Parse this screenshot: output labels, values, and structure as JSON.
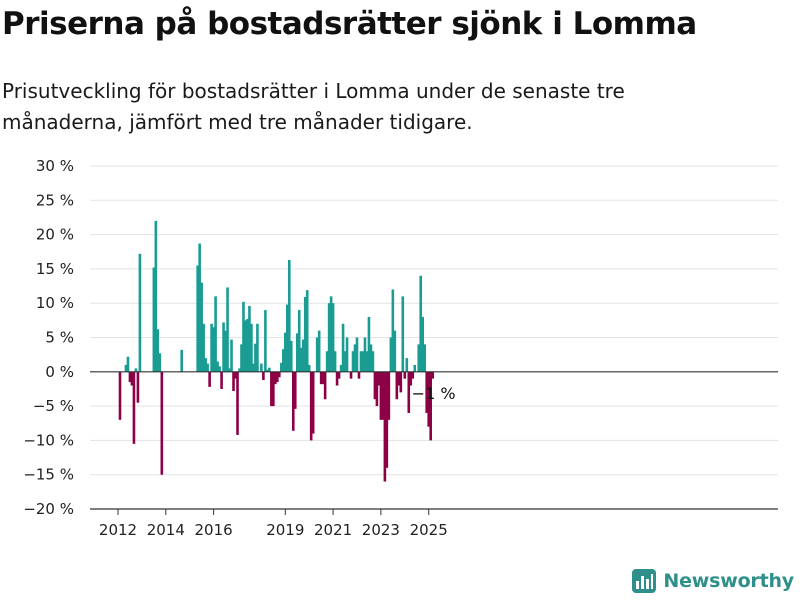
{
  "title": "Priserna på bostadsrätter sjönk i Lomma",
  "subtitle": "Prisutveckling för bostadsrätter i Lomma under de senaste tre månaderna, jämfört med tre månader tidigare.",
  "brand": "Newsworthy",
  "colors": {
    "positive": "#1a9c93",
    "negative": "#8c0046",
    "grid": "#e3e3e3",
    "axis": "#333333",
    "brand": "#2f8f8a"
  },
  "chart_data": {
    "type": "bar",
    "xlabel": "",
    "ylabel": "",
    "ylim": [
      -20,
      30
    ],
    "y_ticks": [
      30,
      25,
      20,
      15,
      10,
      5,
      0,
      -5,
      -10,
      -15,
      -20
    ],
    "y_tick_labels": [
      "30 %",
      "25 %",
      "20 %",
      "15 %",
      "10 %",
      "5 %",
      "0 %",
      "−5 %",
      "−10 %",
      "−15 %",
      "−20 %"
    ],
    "x_ticks": [
      {
        "label": "2012",
        "date": "2012-01"
      },
      {
        "label": "2014",
        "date": "2014-01"
      },
      {
        "label": "2016",
        "date": "2016-01"
      },
      {
        "label": "2019",
        "date": "2019-01"
      },
      {
        "label": "2021",
        "date": "2021-01"
      },
      {
        "label": "2023",
        "date": "2023-01"
      },
      {
        "label": "2025",
        "date": "2025-01"
      }
    ],
    "grid": true,
    "annotation": {
      "text": "−1 %",
      "date": "2025-03"
    },
    "series": [
      {
        "values": [
          {
            "date": "2012-02",
            "value": -7
          },
          {
            "date": "2012-05",
            "value": 1
          },
          {
            "date": "2012-06",
            "value": 2.2
          },
          {
            "date": "2012-07",
            "value": -1.5
          },
          {
            "date": "2012-08",
            "value": -2
          },
          {
            "date": "2012-09",
            "value": -10.5
          },
          {
            "date": "2012-10",
            "value": 0.5
          },
          {
            "date": "2012-11",
            "value": -4.5
          },
          {
            "date": "2012-12",
            "value": 17.2
          },
          {
            "date": "2013-07",
            "value": 15.2
          },
          {
            "date": "2013-08",
            "value": 22
          },
          {
            "date": "2013-09",
            "value": 6.2
          },
          {
            "date": "2013-10",
            "value": 2.7
          },
          {
            "date": "2013-11",
            "value": -15
          },
          {
            "date": "2014-09",
            "value": 3.2
          },
          {
            "date": "2015-05",
            "value": 15.5
          },
          {
            "date": "2015-06",
            "value": 18.7
          },
          {
            "date": "2015-07",
            "value": 13
          },
          {
            "date": "2015-08",
            "value": 7
          },
          {
            "date": "2015-09",
            "value": 2
          },
          {
            "date": "2015-10",
            "value": 1.2
          },
          {
            "date": "2015-11",
            "value": -2.2
          },
          {
            "date": "2015-12",
            "value": 7
          },
          {
            "date": "2016-01",
            "value": 6.5
          },
          {
            "date": "2016-02",
            "value": 11
          },
          {
            "date": "2016-03",
            "value": 1.5
          },
          {
            "date": "2016-04",
            "value": 0.8
          },
          {
            "date": "2016-05",
            "value": -2.5
          },
          {
            "date": "2016-06",
            "value": 7.2
          },
          {
            "date": "2016-07",
            "value": 6
          },
          {
            "date": "2016-08",
            "value": 12.3
          },
          {
            "date": "2016-09",
            "value": 0.5
          },
          {
            "date": "2016-10",
            "value": 4.7
          },
          {
            "date": "2016-11",
            "value": -2.8
          },
          {
            "date": "2016-12",
            "value": -1
          },
          {
            "date": "2017-01",
            "value": -9.2
          },
          {
            "date": "2017-02",
            "value": 0.5
          },
          {
            "date": "2017-03",
            "value": 4
          },
          {
            "date": "2017-04",
            "value": 10.2
          },
          {
            "date": "2017-05",
            "value": 7.5
          },
          {
            "date": "2017-06",
            "value": 7.7
          },
          {
            "date": "2017-07",
            "value": 9.6
          },
          {
            "date": "2017-08",
            "value": 7
          },
          {
            "date": "2017-09",
            "value": 1.2
          },
          {
            "date": "2017-10",
            "value": 4.1
          },
          {
            "date": "2017-11",
            "value": 7
          },
          {
            "date": "2018-01",
            "value": 1.2
          },
          {
            "date": "2018-02",
            "value": -1.2
          },
          {
            "date": "2018-03",
            "value": 9
          },
          {
            "date": "2018-04",
            "value": 0.3
          },
          {
            "date": "2018-05",
            "value": 0.6
          },
          {
            "date": "2018-06",
            "value": -5
          },
          {
            "date": "2018-07",
            "value": -5
          },
          {
            "date": "2018-08",
            "value": -1.8
          },
          {
            "date": "2018-09",
            "value": -1.5
          },
          {
            "date": "2018-10",
            "value": -0.8
          },
          {
            "date": "2018-11",
            "value": 1.3
          },
          {
            "date": "2018-12",
            "value": 3.3
          },
          {
            "date": "2019-01",
            "value": 5.7
          },
          {
            "date": "2019-02",
            "value": 9.8
          },
          {
            "date": "2019-03",
            "value": 16.3
          },
          {
            "date": "2019-04",
            "value": 4.5
          },
          {
            "date": "2019-05",
            "value": -8.6
          },
          {
            "date": "2019-06",
            "value": -5.4
          },
          {
            "date": "2019-07",
            "value": 5.6
          },
          {
            "date": "2019-08",
            "value": 9
          },
          {
            "date": "2019-09",
            "value": 3.5
          },
          {
            "date": "2019-10",
            "value": 4.7
          },
          {
            "date": "2019-11",
            "value": 10.9
          },
          {
            "date": "2019-12",
            "value": 11.9
          },
          {
            "date": "2020-01",
            "value": 1
          },
          {
            "date": "2020-02",
            "value": -10
          },
          {
            "date": "2020-03",
            "value": -9
          },
          {
            "date": "2020-05",
            "value": 5
          },
          {
            "date": "2020-06",
            "value": 6
          },
          {
            "date": "2020-07",
            "value": -1.8
          },
          {
            "date": "2020-08",
            "value": -1.8
          },
          {
            "date": "2020-09",
            "value": -4
          },
          {
            "date": "2020-10",
            "value": 3
          },
          {
            "date": "2020-11",
            "value": 10
          },
          {
            "date": "2020-12",
            "value": 11
          },
          {
            "date": "2021-01",
            "value": 10
          },
          {
            "date": "2021-02",
            "value": 3
          },
          {
            "date": "2021-03",
            "value": -2
          },
          {
            "date": "2021-04",
            "value": -1
          },
          {
            "date": "2021-05",
            "value": 1
          },
          {
            "date": "2021-06",
            "value": 7
          },
          {
            "date": "2021-07",
            "value": 3
          },
          {
            "date": "2021-08",
            "value": 5
          },
          {
            "date": "2021-10",
            "value": -1
          },
          {
            "date": "2021-11",
            "value": 3
          },
          {
            "date": "2021-12",
            "value": 4
          },
          {
            "date": "2022-01",
            "value": 5
          },
          {
            "date": "2022-02",
            "value": -1
          },
          {
            "date": "2022-03",
            "value": 3
          },
          {
            "date": "2022-04",
            "value": 3
          },
          {
            "date": "2022-05",
            "value": 5
          },
          {
            "date": "2022-06",
            "value": 3
          },
          {
            "date": "2022-07",
            "value": 8
          },
          {
            "date": "2022-08",
            "value": 4
          },
          {
            "date": "2022-09",
            "value": 3
          },
          {
            "date": "2022-10",
            "value": -4
          },
          {
            "date": "2022-11",
            "value": -5
          },
          {
            "date": "2022-12",
            "value": -2
          },
          {
            "date": "2023-01",
            "value": -7
          },
          {
            "date": "2023-02",
            "value": -7
          },
          {
            "date": "2023-03",
            "value": -16
          },
          {
            "date": "2023-04",
            "value": -14
          },
          {
            "date": "2023-05",
            "value": -7
          },
          {
            "date": "2023-06",
            "value": 5
          },
          {
            "date": "2023-07",
            "value": 12
          },
          {
            "date": "2023-08",
            "value": 6
          },
          {
            "date": "2023-09",
            "value": -4
          },
          {
            "date": "2023-10",
            "value": -2
          },
          {
            "date": "2023-11",
            "value": -3
          },
          {
            "date": "2023-12",
            "value": 11
          },
          {
            "date": "2024-01",
            "value": -1
          },
          {
            "date": "2024-02",
            "value": 2
          },
          {
            "date": "2024-03",
            "value": -6
          },
          {
            "date": "2024-04",
            "value": -2
          },
          {
            "date": "2024-05",
            "value": -1
          },
          {
            "date": "2024-06",
            "value": 1
          },
          {
            "date": "2024-08",
            "value": 4
          },
          {
            "date": "2024-09",
            "value": 14
          },
          {
            "date": "2024-10",
            "value": 8
          },
          {
            "date": "2024-11",
            "value": 4
          },
          {
            "date": "2024-12",
            "value": -6
          },
          {
            "date": "2025-01",
            "value": -8
          },
          {
            "date": "2025-02",
            "value": -10
          },
          {
            "date": "2025-03",
            "value": -1
          }
        ]
      }
    ]
  }
}
